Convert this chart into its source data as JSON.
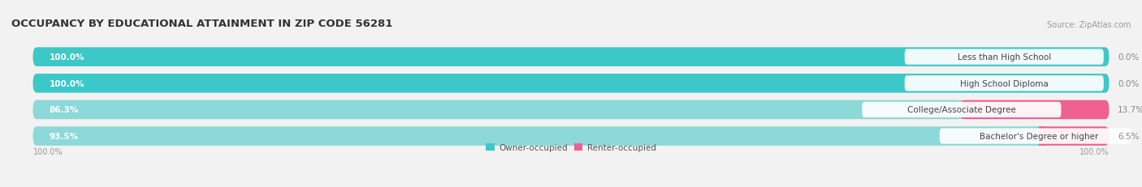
{
  "title": "OCCUPANCY BY EDUCATIONAL ATTAINMENT IN ZIP CODE 56281",
  "source": "Source: ZipAtlas.com",
  "categories": [
    "Less than High School",
    "High School Diploma",
    "College/Associate Degree",
    "Bachelor's Degree or higher"
  ],
  "owner_values": [
    100.0,
    100.0,
    86.3,
    93.5
  ],
  "renter_values": [
    0.0,
    0.0,
    13.7,
    6.5
  ],
  "owner_color": "#3cc8c8",
  "owner_light_color": "#8dd8d8",
  "renter_color": "#f06090",
  "renter_light_color": "#f0a8c0",
  "bg_color": "#f2f2f2",
  "bar_bg_color": "#e2e2e2",
  "title_color": "#333333",
  "source_color": "#999999",
  "label_color": "#444444",
  "pct_color_inside": "#ffffff",
  "pct_color_outside": "#888888",
  "title_fontsize": 9.5,
  "label_fontsize": 7.5,
  "pct_fontsize": 7.5,
  "legend_fontsize": 7.5,
  "source_fontsize": 7,
  "axis_label_left": "100.0%",
  "axis_label_right": "100.0%"
}
